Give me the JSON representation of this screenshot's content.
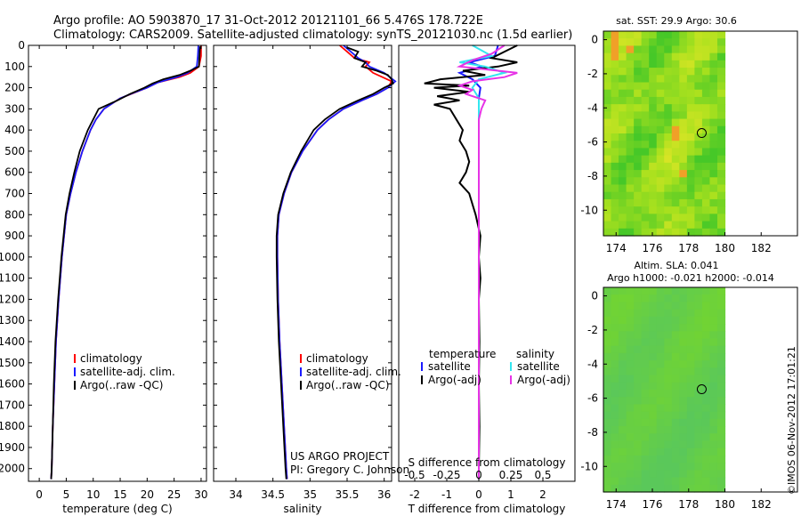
{
  "header": {
    "title_line1": "Argo profile: AO 5903870_17 31-Oct-2012 20121101_66 5.476S 178.722E",
    "title_line2": "Climatology: CARS2009. Satellite-adjusted climatology: synTS_20121030.nc (1.5d earlier)"
  },
  "colors": {
    "climatology": "#ff0000",
    "satellite": "#1a1aff",
    "argo": "#000000",
    "satellite_s": "#33e6f0",
    "argo_s": "#e633e6"
  },
  "depth_ticks": [
    "0",
    "100",
    "200",
    "300",
    "400",
    "500",
    "600",
    "700",
    "800",
    "900",
    "1000",
    "1100",
    "1200",
    "1300",
    "1400",
    "1500",
    "1600",
    "1700",
    "1800",
    "1900",
    "2000"
  ],
  "chart_data": [
    {
      "type": "line",
      "name": "temperature-profile",
      "xlabel": "temperature (deg C)",
      "xlim": [
        -2,
        31
      ],
      "ylim": [
        2060,
        0
      ],
      "xticks": [
        "0",
        "5",
        "10",
        "15",
        "20",
        "25",
        "30"
      ],
      "legend": [
        "climatology",
        "satellite-adj. clim.",
        "Argo(..raw -QC)"
      ],
      "series": [
        {
          "name": "climatology",
          "depth": [
            0,
            50,
            100,
            130,
            150,
            175,
            200,
            225,
            250,
            300,
            350,
            400,
            500,
            600,
            700,
            800,
            1000,
            1200,
            1400,
            1600,
            1800,
            2000,
            2050
          ],
          "values": [
            30,
            30,
            29.6,
            28,
            26,
            22,
            20,
            17.5,
            15,
            12,
            10.5,
            9.5,
            8,
            6.8,
            5.8,
            5,
            4.2,
            3.6,
            3.1,
            2.8,
            2.5,
            2.3,
            2.2
          ]
        },
        {
          "name": "satellite-adj. clim.",
          "depth": [
            0,
            50,
            100,
            130,
            150,
            175,
            200,
            225,
            250,
            300,
            350,
            400,
            500,
            600,
            700,
            800,
            1000,
            1200,
            1400,
            1600,
            1800,
            2000,
            2050
          ],
          "values": [
            29.5,
            29.4,
            29.2,
            27.5,
            25.5,
            22,
            20,
            17.4,
            15,
            12,
            10.5,
            9.5,
            8,
            6.8,
            5.8,
            5,
            4.2,
            3.6,
            3.1,
            2.8,
            2.5,
            2.3,
            2.2
          ]
        },
        {
          "name": "Argo",
          "depth": [
            5,
            50,
            100,
            120,
            140,
            160,
            180,
            200,
            230,
            260,
            300,
            350,
            400,
            500,
            600,
            700,
            800,
            1000,
            1200,
            1400,
            1600,
            1800,
            2000,
            2050
          ],
          "values": [
            29.8,
            29.7,
            29.6,
            28,
            26,
            23,
            21,
            19.5,
            16.8,
            14.5,
            11,
            10,
            9,
            7.5,
            6.5,
            5.6,
            4.9,
            4.1,
            3.5,
            3.0,
            2.7,
            2.5,
            2.3,
            2.2
          ]
        }
      ]
    },
    {
      "type": "line",
      "name": "salinity-profile",
      "xlabel": "salinity",
      "xlim": [
        33.7,
        36.1
      ],
      "ylim": [
        2060,
        0
      ],
      "xticks": [
        "34",
        "34.5",
        "35",
        "35.5",
        "36"
      ],
      "legend": [
        "climatology",
        "satellite-adj. clim.",
        "Argo(..raw -QC)"
      ],
      "footer_lines": [
        "US ARGO PROJECT",
        "PI: Gregory C. Johnson"
      ],
      "series": [
        {
          "name": "climatology",
          "depth": [
            0,
            30,
            60,
            80,
            100,
            130,
            170,
            200,
            230,
            260,
            300,
            350,
            400,
            500,
            600,
            700,
            800,
            900,
            1000,
            1200,
            1400,
            1600,
            1800,
            2000,
            2050
          ],
          "values": [
            35.4,
            35.5,
            35.6,
            35.8,
            35.75,
            35.85,
            36.1,
            36.05,
            35.9,
            35.7,
            35.45,
            35.25,
            35.1,
            34.9,
            34.75,
            34.65,
            34.58,
            34.56,
            34.56,
            34.57,
            34.59,
            34.62,
            34.65,
            34.68,
            34.69
          ]
        },
        {
          "name": "satellite-adj. clim.",
          "depth": [
            0,
            30,
            60,
            80,
            100,
            130,
            170,
            200,
            230,
            260,
            300,
            350,
            400,
            500,
            600,
            700,
            800,
            900,
            1000,
            1200,
            1400,
            1600,
            1800,
            2000,
            2050
          ],
          "values": [
            35.45,
            35.55,
            35.65,
            35.75,
            35.8,
            36.0,
            36.15,
            36.05,
            35.9,
            35.7,
            35.45,
            35.25,
            35.1,
            34.9,
            34.75,
            34.65,
            34.58,
            34.56,
            34.56,
            34.57,
            34.59,
            34.62,
            34.65,
            34.68,
            34.69
          ]
        },
        {
          "name": "Argo",
          "depth": [
            10,
            30,
            60,
            80,
            100,
            120,
            140,
            160,
            180,
            200,
            230,
            260,
            300,
            350,
            400,
            500,
            600,
            700,
            800,
            900,
            1000,
            1200,
            1400,
            1600,
            1800,
            2000,
            2050
          ],
          "values": [
            35.5,
            35.65,
            35.6,
            35.75,
            35.7,
            35.9,
            36.05,
            36.1,
            36.12,
            36.0,
            35.85,
            35.65,
            35.4,
            35.2,
            35.05,
            34.88,
            34.74,
            34.64,
            34.57,
            34.55,
            34.55,
            34.56,
            34.58,
            34.61,
            34.64,
            34.67,
            34.68
          ]
        }
      ]
    },
    {
      "type": "line",
      "name": "difference-profile",
      "xlabel": "T difference from climatology",
      "top_label": "S difference from climatology",
      "xlim": [
        -2.5,
        3.0
      ],
      "ylim": [
        2060,
        0
      ],
      "t_ticks": [
        "-2",
        "-1",
        "0",
        "1",
        "2"
      ],
      "s_ticks": [
        "-0.5",
        "-0.25",
        "0",
        "0.25",
        "0.5"
      ],
      "legend_titles": [
        "temperature",
        "salinity"
      ],
      "legend": [
        "satellite",
        "Argo(-adj)",
        "satellite",
        "Argo(-adj)"
      ],
      "series": [
        {
          "name": "temperature satellite",
          "depth": [
            0,
            50,
            80,
            100,
            130,
            160,
            200,
            250,
            300,
            400,
            500,
            700,
            1000,
            1500,
            2000,
            2050
          ],
          "values": [
            0.6,
            0.5,
            -0.3,
            0.1,
            -0.6,
            -0.2,
            0.05,
            0.0,
            0.0,
            0.0,
            0.0,
            0.0,
            0.0,
            0.0,
            0.0,
            0.0
          ]
        },
        {
          "name": "temperature Argo",
          "depth": [
            0,
            30,
            60,
            80,
            100,
            120,
            140,
            160,
            180,
            190,
            200,
            220,
            240,
            260,
            280,
            300,
            350,
            400,
            450,
            500,
            550,
            600,
            650,
            700,
            750,
            800,
            900,
            1000,
            1100,
            1200,
            1400,
            1600,
            1800,
            2000,
            2050
          ],
          "values": [
            1.2,
            0.8,
            0.4,
            1.2,
            0.6,
            -0.5,
            0.2,
            -1.2,
            -1.7,
            -0.3,
            -1.4,
            -0.3,
            -1.3,
            -0.6,
            -1.4,
            -0.9,
            -0.7,
            -0.5,
            -0.6,
            -0.4,
            -0.3,
            -0.4,
            -0.6,
            -0.3,
            -0.2,
            -0.1,
            0.05,
            0.0,
            0.05,
            0.0,
            0.02,
            0.0,
            0.02,
            0.0,
            0.0
          ]
        },
        {
          "name": "salinity satellite",
          "depth": [
            0,
            50,
            80,
            100,
            130,
            160,
            200,
            250,
            300,
            400,
            500,
            700,
            1000,
            1500,
            2000,
            2050
          ],
          "values": [
            -0.05,
            0.1,
            -0.15,
            0.05,
            0.2,
            0.0,
            -0.05,
            0.0,
            0.0,
            0.0,
            0.0,
            0.0,
            0.0,
            0.0,
            0.0,
            0.0
          ]
        },
        {
          "name": "salinity Argo",
          "depth": [
            0,
            40,
            70,
            100,
            130,
            150,
            170,
            190,
            210,
            230,
            260,
            300,
            350,
            400,
            500,
            600,
            800,
            1000,
            1500,
            2000,
            2050
          ],
          "values": [
            0.2,
            0.1,
            -0.05,
            -0.15,
            0.3,
            0.2,
            -0.05,
            -0.15,
            -0.05,
            -0.1,
            0.05,
            0.02,
            0.0,
            0.0,
            0.0,
            0.0,
            0.0,
            0.0,
            0.0,
            0.0,
            0.0
          ]
        }
      ]
    },
    {
      "type": "heatmap",
      "name": "sst-map",
      "title": "sat. SST: 29.9  Argo: 30.6",
      "xlim": [
        173.3,
        184.0
      ],
      "ylim": [
        -11.5,
        0.5
      ],
      "xticks": [
        "174",
        "176",
        "178",
        "180",
        "182"
      ],
      "yticks": [
        "0",
        "-2",
        "-4",
        "-6",
        "-8",
        "-10"
      ],
      "data_lon_max": 180,
      "argo_position": [
        178.722,
        -5.476
      ]
    },
    {
      "type": "heatmap",
      "name": "sla-map",
      "title": "Altim. SLA: 0.041",
      "subtitle": "Argo h1000: -0.021 h2000: -0.014",
      "xlim": [
        173.3,
        184.0
      ],
      "ylim": [
        -11.5,
        0.5
      ],
      "xticks": [
        "174",
        "176",
        "178",
        "180",
        "182"
      ],
      "yticks": [
        "0",
        "-2",
        "-4",
        "-6",
        "-8",
        "-10"
      ],
      "data_lon_max": 180,
      "argo_position": [
        178.722,
        -5.476
      ]
    }
  ],
  "footer": {
    "stamp": "©IMOS 06-Nov-2012 17:01:21"
  }
}
